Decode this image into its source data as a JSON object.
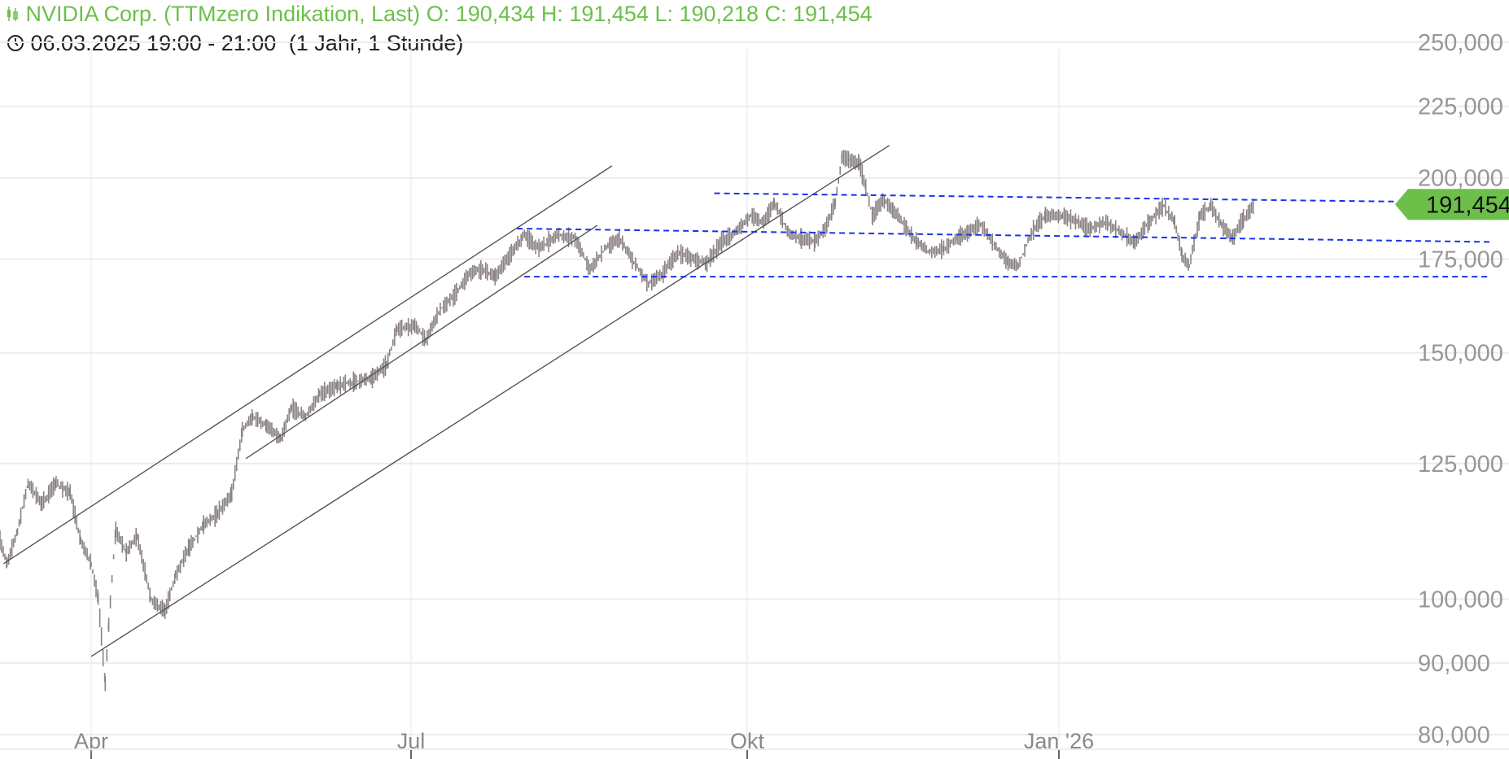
{
  "header": {
    "title": "NVIDIA Corp. (TTMzero Indikation, Last)",
    "open": "O: 190,434",
    "high": "H: 191,454",
    "low": "L: 190,218",
    "close": "C: 191,454",
    "time_range": "06.03.2025 19:00 - 21:00",
    "period": "(1 Jahr, 1 Stunde)",
    "icons": [
      "candlestick-icon",
      "clock-icon"
    ],
    "title_color": "#6cc04a"
  },
  "chart_data": {
    "type": "line",
    "style": "ohlc-bars",
    "y_scale": "log",
    "ylim": [
      80,
      250
    ],
    "y_ticks": [
      "250,000",
      "225,000",
      "200,000",
      "175,000",
      "150,000",
      "125,000",
      "100,000",
      "90,000",
      "80,000"
    ],
    "y_tick_values": [
      250,
      225,
      200,
      175,
      150,
      125,
      100,
      90,
      80
    ],
    "x_ticks": [
      "Apr",
      "Jul",
      "Okt",
      "Jan '26"
    ],
    "x_tick_dates": [
      "2025-04-01",
      "2025-07-01",
      "2025-10-01",
      "2026-01-01"
    ],
    "grid": true,
    "series_color": "#8a8282",
    "last_price": {
      "label": "191,454",
      "value": 191.454,
      "color": "#6cc04a"
    },
    "price_path": [
      [
        "2025-03-06",
        110
      ],
      [
        "2025-03-08",
        106
      ],
      [
        "2025-03-11",
        112
      ],
      [
        "2025-03-14",
        121
      ],
      [
        "2025-03-18",
        117
      ],
      [
        "2025-03-22",
        121
      ],
      [
        "2025-03-26",
        119
      ],
      [
        "2025-03-29",
        110
      ],
      [
        "2025-04-01",
        106
      ],
      [
        "2025-04-03",
        100
      ],
      [
        "2025-04-05",
        87
      ],
      [
        "2025-04-06",
        96
      ],
      [
        "2025-04-08",
        112
      ],
      [
        "2025-04-11",
        108
      ],
      [
        "2025-04-14",
        111
      ],
      [
        "2025-04-18",
        100
      ],
      [
        "2025-04-22",
        98
      ],
      [
        "2025-04-25",
        104
      ],
      [
        "2025-04-29",
        109
      ],
      [
        "2025-05-03",
        113
      ],
      [
        "2025-05-07",
        115
      ],
      [
        "2025-05-11",
        119
      ],
      [
        "2025-05-14",
        132
      ],
      [
        "2025-05-17",
        135
      ],
      [
        "2025-05-21",
        133
      ],
      [
        "2025-05-25",
        130
      ],
      [
        "2025-05-28",
        137
      ],
      [
        "2025-06-01",
        135
      ],
      [
        "2025-06-05",
        140
      ],
      [
        "2025-06-10",
        142
      ],
      [
        "2025-06-15",
        143
      ],
      [
        "2025-06-20",
        144
      ],
      [
        "2025-06-24",
        147
      ],
      [
        "2025-06-27",
        156
      ],
      [
        "2025-07-02",
        157
      ],
      [
        "2025-07-05",
        153
      ],
      [
        "2025-07-09",
        161
      ],
      [
        "2025-07-13",
        165
      ],
      [
        "2025-07-17",
        171
      ],
      [
        "2025-07-21",
        172
      ],
      [
        "2025-07-24",
        170
      ],
      [
        "2025-07-28",
        176
      ],
      [
        "2025-08-01",
        182
      ],
      [
        "2025-08-05",
        178
      ],
      [
        "2025-08-10",
        182
      ],
      [
        "2025-08-15",
        181
      ],
      [
        "2025-08-19",
        172
      ],
      [
        "2025-08-23",
        178
      ],
      [
        "2025-08-27",
        181
      ],
      [
        "2025-08-31",
        174
      ],
      [
        "2025-09-04",
        168
      ],
      [
        "2025-09-08",
        171
      ],
      [
        "2025-09-12",
        177
      ],
      [
        "2025-09-16",
        175
      ],
      [
        "2025-09-20",
        174
      ],
      [
        "2025-09-24",
        180
      ],
      [
        "2025-09-28",
        183
      ],
      [
        "2025-10-02",
        188
      ],
      [
        "2025-10-06",
        186
      ],
      [
        "2025-10-09",
        192
      ],
      [
        "2025-10-13",
        183
      ],
      [
        "2025-10-17",
        181
      ],
      [
        "2025-10-21",
        180
      ],
      [
        "2025-10-24",
        184
      ],
      [
        "2025-10-27",
        192
      ],
      [
        "2025-10-29",
        207
      ],
      [
        "2025-10-31",
        206
      ],
      [
        "2025-11-03",
        205
      ],
      [
        "2025-11-05",
        197
      ],
      [
        "2025-11-07",
        188
      ],
      [
        "2025-11-10",
        193
      ],
      [
        "2025-11-13",
        190
      ],
      [
        "2025-11-17",
        184
      ],
      [
        "2025-11-20",
        180
      ],
      [
        "2025-11-24",
        177
      ],
      [
        "2025-11-28",
        178
      ],
      [
        "2025-12-02",
        181
      ],
      [
        "2025-12-05",
        183
      ],
      [
        "2025-12-09",
        185
      ],
      [
        "2025-12-13",
        179
      ],
      [
        "2025-12-17",
        174
      ],
      [
        "2025-12-20",
        173
      ],
      [
        "2025-12-24",
        183
      ],
      [
        "2025-12-28",
        188
      ],
      [
        "2026-01-02",
        188
      ],
      [
        "2026-01-06",
        186
      ],
      [
        "2026-01-10",
        184
      ],
      [
        "2026-01-14",
        186
      ],
      [
        "2026-01-18",
        183
      ],
      [
        "2026-01-22",
        180
      ],
      [
        "2026-01-26",
        186
      ],
      [
        "2026-01-30",
        191
      ],
      [
        "2026-02-02",
        186
      ],
      [
        "2026-02-04",
        176
      ],
      [
        "2026-02-06",
        173
      ],
      [
        "2026-02-09",
        188
      ],
      [
        "2026-02-12",
        191
      ],
      [
        "2026-02-15",
        185
      ],
      [
        "2026-02-18",
        181
      ],
      [
        "2026-02-21",
        187
      ],
      [
        "2026-02-24",
        191.454
      ]
    ],
    "trend_lines": [
      {
        "style": "solid",
        "color": "#555555",
        "from": [
          "2025-03-07",
          106
        ],
        "to": [
          "2025-08-25",
          204
        ]
      },
      {
        "style": "solid",
        "color": "#555555",
        "from": [
          "2025-05-15",
          126
        ],
        "to": [
          "2025-08-21",
          185
        ]
      },
      {
        "style": "solid",
        "color": "#555555",
        "from": [
          "2025-04-01",
          91
        ],
        "to": [
          "2025-11-12",
          211
        ]
      },
      {
        "style": "dashed",
        "color": "#1a33ee",
        "from": [
          "2025-07-30",
          184
        ],
        "to": [
          "2026-04-30",
          180
        ]
      },
      {
        "style": "dashed",
        "color": "#1a33ee",
        "from": [
          "2025-09-22",
          195
        ],
        "to": [
          "2026-04-30",
          192
        ]
      },
      {
        "style": "dashed",
        "color": "#1a33ee",
        "from": [
          "2025-08-01",
          170
        ],
        "to": [
          "2026-04-30",
          170
        ]
      }
    ]
  }
}
